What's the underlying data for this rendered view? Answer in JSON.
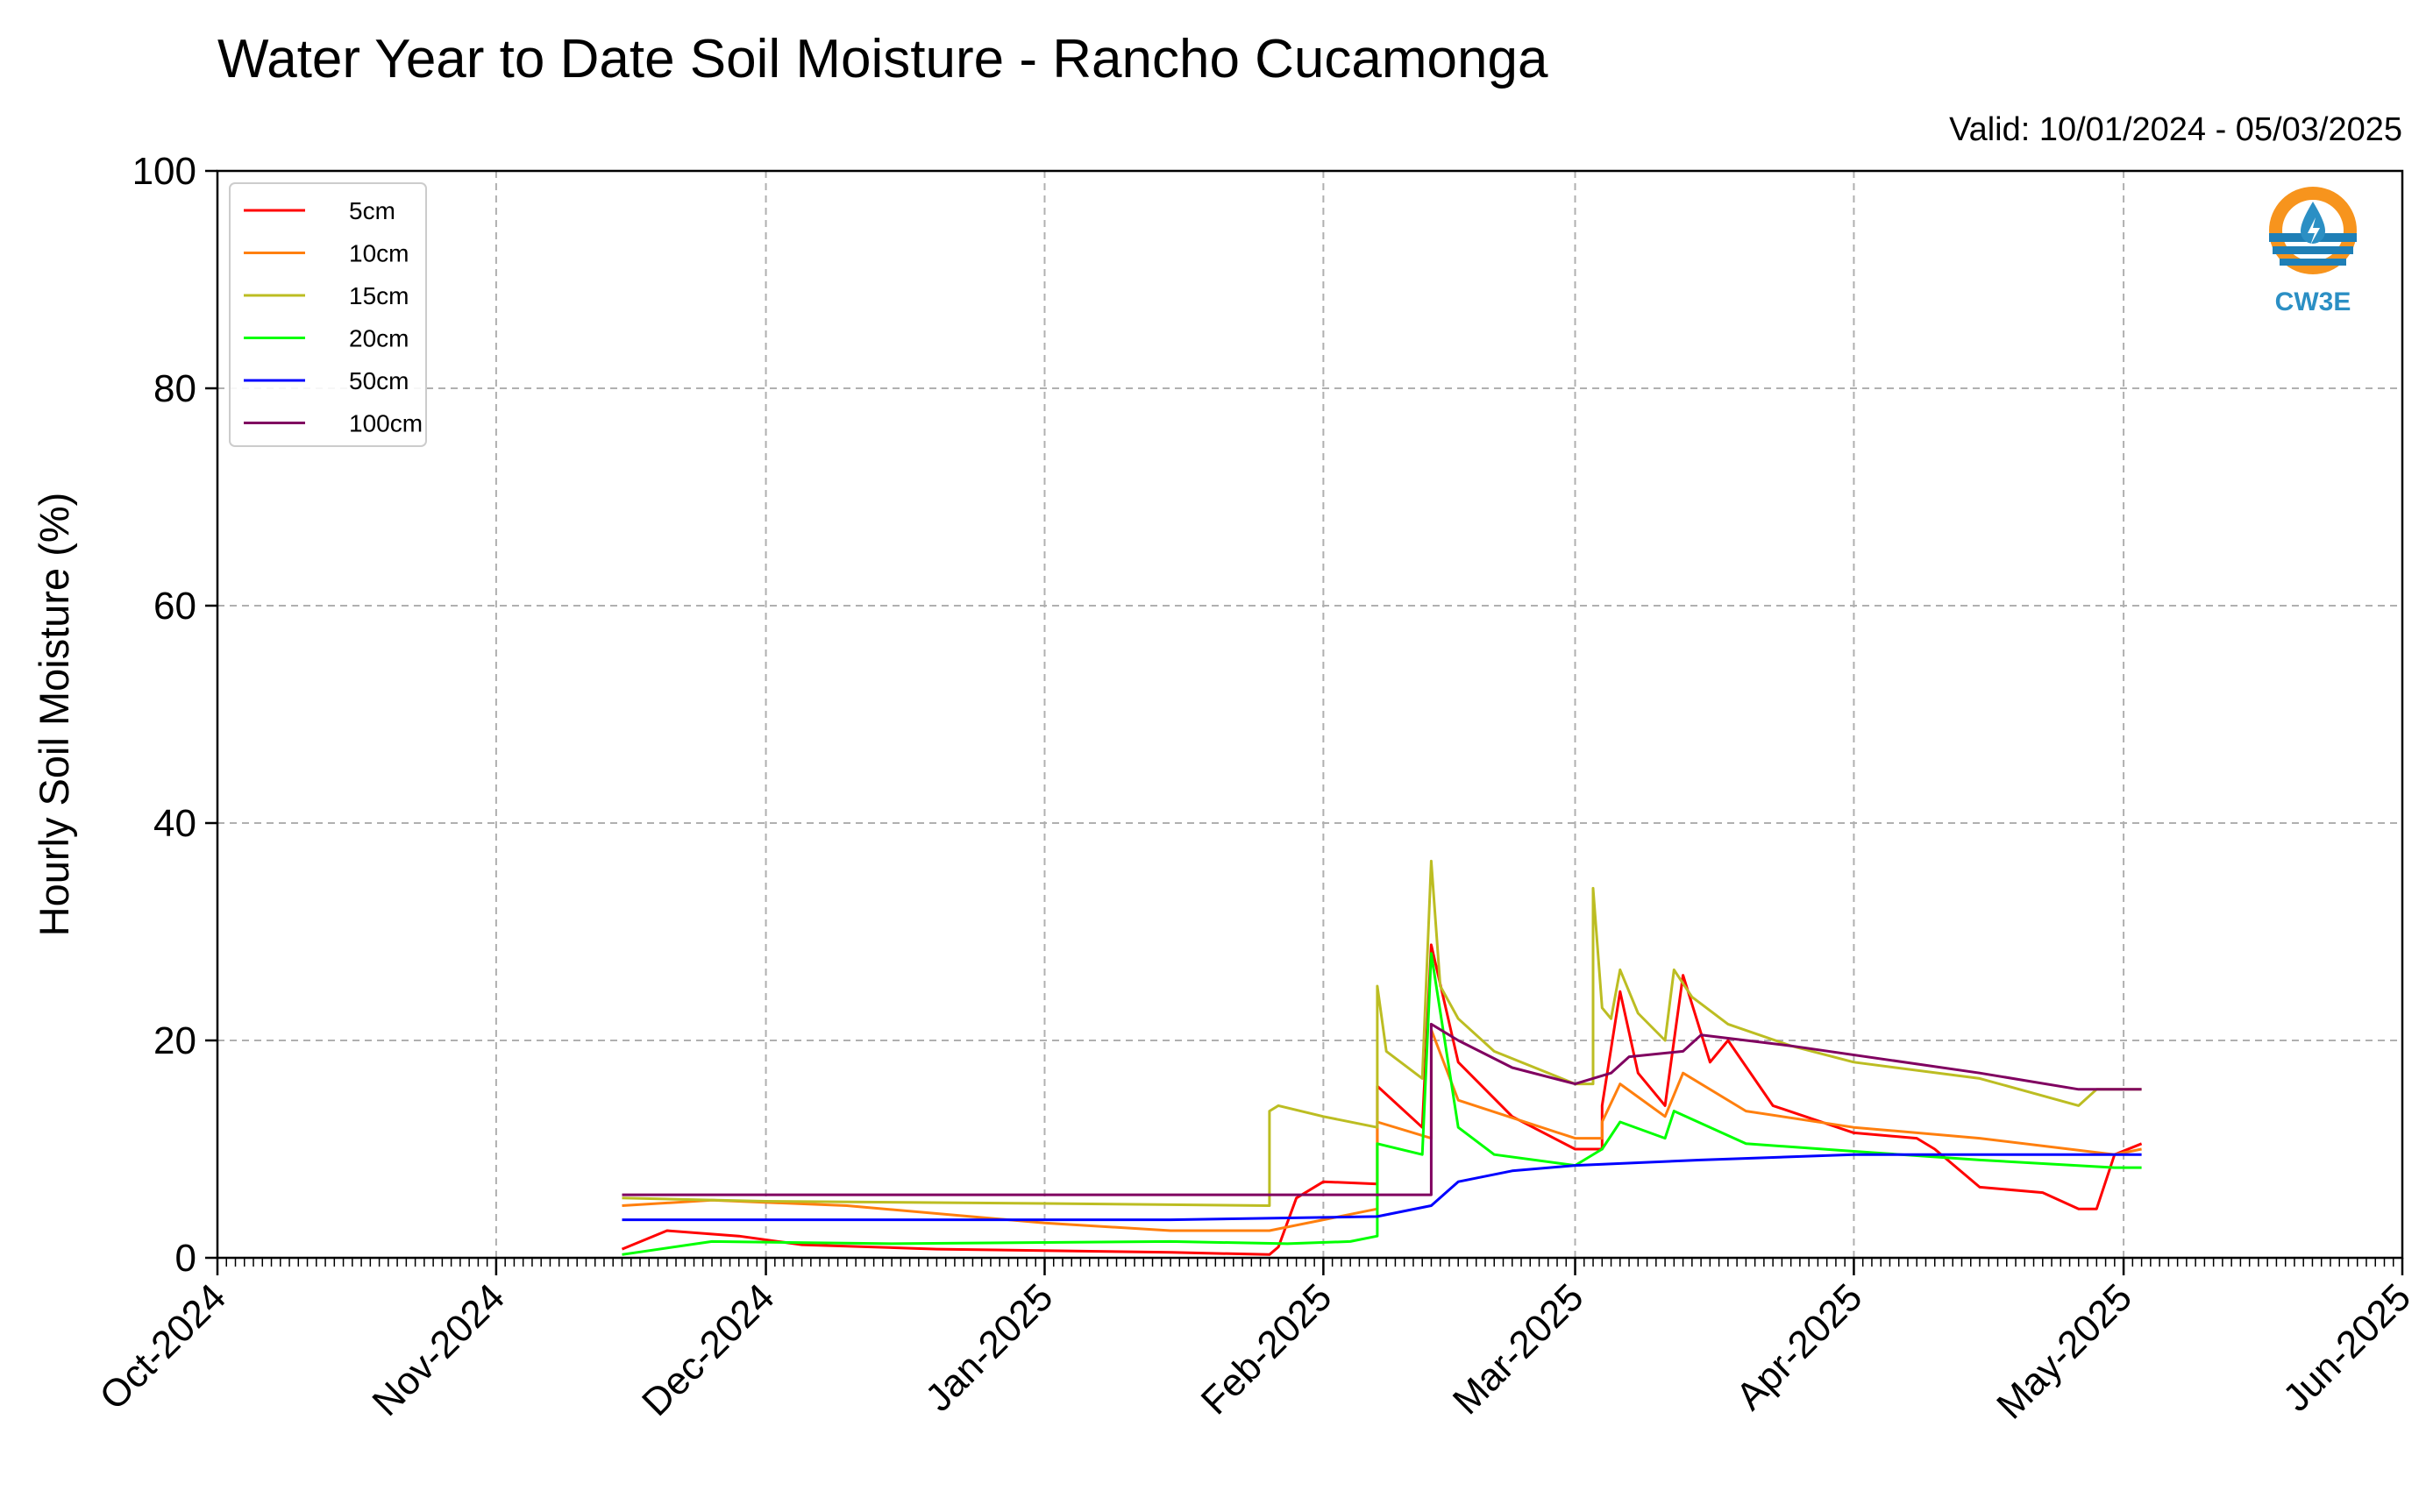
{
  "title": "Water Year to Date Soil Moisture - Rancho Cucamonga",
  "valid_text": "Valid: 10/01/2024 - 05/03/2025",
  "logo_text": "CW3E",
  "chart_data": {
    "type": "line",
    "title": "Water Year to Date Soil Moisture - Rancho Cucamonga",
    "xlabel": "",
    "ylabel": "Hourly Soil Moisture (%)",
    "xlim": [
      "2024-10-01",
      "2025-06-01"
    ],
    "ylim": [
      0,
      100
    ],
    "grid": true,
    "legend_position": "top-left",
    "x_ticks": [
      "2024-10-01",
      "2024-11-01",
      "2024-12-01",
      "2025-01-01",
      "2025-02-01",
      "2025-03-01",
      "2025-04-01",
      "2025-05-01",
      "2025-06-01"
    ],
    "x_tick_labels": [
      "Oct-2024",
      "Nov-2024",
      "Dec-2024",
      "Jan-2025",
      "Feb-2025",
      "Mar-2025",
      "Apr-2025",
      "May-2025",
      "Jun-2025"
    ],
    "y_ticks": [
      0,
      20,
      40,
      60,
      80,
      100
    ],
    "y_tick_labels": [
      "0",
      "20",
      "40",
      "60",
      "80",
      "100"
    ],
    "series": [
      {
        "name": "5cm",
        "color": "#ff0000",
        "points": [
          [
            "2024-11-15",
            0.8
          ],
          [
            "2024-11-20",
            2.5
          ],
          [
            "2024-11-28",
            2.0
          ],
          [
            "2024-12-05",
            1.2
          ],
          [
            "2024-12-20",
            0.8
          ],
          [
            "2025-01-15",
            0.5
          ],
          [
            "2025-01-26",
            0.3
          ],
          [
            "2025-01-27",
            1.0
          ],
          [
            "2025-01-29",
            5.5
          ],
          [
            "2025-02-01",
            7.0
          ],
          [
            "2025-02-07",
            6.8
          ],
          [
            "2025-02-07",
            15.8
          ],
          [
            "2025-02-12",
            12.0
          ],
          [
            "2025-02-13",
            28.8
          ],
          [
            "2025-02-16",
            18.0
          ],
          [
            "2025-02-22",
            13.0
          ],
          [
            "2025-03-01",
            10.0
          ],
          [
            "2025-03-04",
            10.0
          ],
          [
            "2025-03-04",
            14.0
          ],
          [
            "2025-03-06",
            24.5
          ],
          [
            "2025-03-08",
            17.0
          ],
          [
            "2025-03-11",
            14.0
          ],
          [
            "2025-03-13",
            26.0
          ],
          [
            "2025-03-16",
            18.0
          ],
          [
            "2025-03-18",
            20.0
          ],
          [
            "2025-03-23",
            14.0
          ],
          [
            "2025-04-01",
            11.5
          ],
          [
            "2025-04-08",
            11.0
          ],
          [
            "2025-04-10",
            10.0
          ],
          [
            "2025-04-15",
            6.5
          ],
          [
            "2025-04-22",
            6.0
          ],
          [
            "2025-04-26",
            4.5
          ],
          [
            "2025-04-28",
            4.5
          ],
          [
            "2025-04-30",
            9.5
          ],
          [
            "2025-05-03",
            10.5
          ]
        ]
      },
      {
        "name": "10cm",
        "color": "#ff7f0e",
        "points": [
          [
            "2024-11-15",
            4.8
          ],
          [
            "2024-11-25",
            5.3
          ],
          [
            "2024-12-10",
            4.8
          ],
          [
            "2025-01-01",
            3.2
          ],
          [
            "2025-01-15",
            2.5
          ],
          [
            "2025-01-26",
            2.5
          ],
          [
            "2025-02-01",
            3.5
          ],
          [
            "2025-02-07",
            4.5
          ],
          [
            "2025-02-07",
            12.5
          ],
          [
            "2025-02-13",
            11.0
          ],
          [
            "2025-02-13",
            21.0
          ],
          [
            "2025-02-16",
            14.5
          ],
          [
            "2025-03-01",
            11.0
          ],
          [
            "2025-03-04",
            11.0
          ],
          [
            "2025-03-04",
            12.5
          ],
          [
            "2025-03-06",
            16.0
          ],
          [
            "2025-03-11",
            13.0
          ],
          [
            "2025-03-13",
            17.0
          ],
          [
            "2025-03-20",
            13.5
          ],
          [
            "2025-04-01",
            12.0
          ],
          [
            "2025-04-15",
            11.0
          ],
          [
            "2025-04-30",
            9.5
          ],
          [
            "2025-05-03",
            10.0
          ]
        ]
      },
      {
        "name": "15cm",
        "color": "#bcbd22",
        "points": [
          [
            "2024-11-15",
            5.5
          ],
          [
            "2024-12-01",
            5.2
          ],
          [
            "2025-01-01",
            5.0
          ],
          [
            "2025-01-26",
            4.8
          ],
          [
            "2025-01-26",
            13.5
          ],
          [
            "2025-01-27",
            14.0
          ],
          [
            "2025-02-01",
            13.0
          ],
          [
            "2025-02-07",
            12.0
          ],
          [
            "2025-02-07",
            25.0
          ],
          [
            "2025-02-08",
            19.0
          ],
          [
            "2025-02-12",
            16.5
          ],
          [
            "2025-02-13",
            36.5
          ],
          [
            "2025-02-14",
            25.0
          ],
          [
            "2025-02-16",
            22.0
          ],
          [
            "2025-02-20",
            19.0
          ],
          [
            "2025-03-01",
            16.0
          ],
          [
            "2025-03-03",
            16.0
          ],
          [
            "2025-03-03",
            34.0
          ],
          [
            "2025-03-04",
            23.0
          ],
          [
            "2025-03-05",
            22.0
          ],
          [
            "2025-03-06",
            26.5
          ],
          [
            "2025-03-08",
            22.5
          ],
          [
            "2025-03-11",
            20.0
          ],
          [
            "2025-03-12",
            26.5
          ],
          [
            "2025-03-14",
            24.0
          ],
          [
            "2025-03-18",
            21.5
          ],
          [
            "2025-03-25",
            19.5
          ],
          [
            "2025-04-01",
            18.0
          ],
          [
            "2025-04-15",
            16.5
          ],
          [
            "2025-04-26",
            14.0
          ],
          [
            "2025-04-28",
            15.5
          ],
          [
            "2025-05-03",
            15.5
          ]
        ]
      },
      {
        "name": "20cm",
        "color": "#00ff00",
        "points": [
          [
            "2024-11-15",
            0.3
          ],
          [
            "2024-11-25",
            1.5
          ],
          [
            "2024-12-15",
            1.3
          ],
          [
            "2025-01-15",
            1.5
          ],
          [
            "2025-01-28",
            1.3
          ],
          [
            "2025-02-04",
            1.5
          ],
          [
            "2025-02-07",
            2.0
          ],
          [
            "2025-02-07",
            10.5
          ],
          [
            "2025-02-12",
            9.5
          ],
          [
            "2025-02-13",
            28.0
          ],
          [
            "2025-02-16",
            12.0
          ],
          [
            "2025-02-20",
            9.5
          ],
          [
            "2025-03-01",
            8.5
          ],
          [
            "2025-03-04",
            10.0
          ],
          [
            "2025-03-06",
            12.5
          ],
          [
            "2025-03-11",
            11.0
          ],
          [
            "2025-03-12",
            13.5
          ],
          [
            "2025-03-20",
            10.5
          ],
          [
            "2025-04-01",
            9.8
          ],
          [
            "2025-04-15",
            9.0
          ],
          [
            "2025-04-30",
            8.3
          ],
          [
            "2025-05-03",
            8.3
          ]
        ]
      },
      {
        "name": "50cm",
        "color": "#0000ff",
        "points": [
          [
            "2024-11-15",
            3.5
          ],
          [
            "2024-12-15",
            3.5
          ],
          [
            "2025-01-15",
            3.5
          ],
          [
            "2025-02-07",
            3.8
          ],
          [
            "2025-02-13",
            4.8
          ],
          [
            "2025-02-16",
            7.0
          ],
          [
            "2025-02-22",
            8.0
          ],
          [
            "2025-03-01",
            8.5
          ],
          [
            "2025-03-15",
            9.0
          ],
          [
            "2025-04-01",
            9.5
          ],
          [
            "2025-04-20",
            9.5
          ],
          [
            "2025-05-03",
            9.5
          ]
        ]
      },
      {
        "name": "100cm",
        "color": "#800060",
        "points": [
          [
            "2024-11-15",
            5.8
          ],
          [
            "2024-12-15",
            5.8
          ],
          [
            "2025-01-15",
            5.8
          ],
          [
            "2025-02-13",
            5.8
          ],
          [
            "2025-02-13",
            21.5
          ],
          [
            "2025-02-16",
            20.0
          ],
          [
            "2025-02-22",
            17.5
          ],
          [
            "2025-03-01",
            16.0
          ],
          [
            "2025-03-05",
            17.0
          ],
          [
            "2025-03-07",
            18.5
          ],
          [
            "2025-03-13",
            19.0
          ],
          [
            "2025-03-15",
            20.5
          ],
          [
            "2025-03-25",
            19.5
          ],
          [
            "2025-04-15",
            17.0
          ],
          [
            "2025-04-26",
            15.5
          ],
          [
            "2025-05-03",
            15.5
          ]
        ]
      }
    ]
  }
}
